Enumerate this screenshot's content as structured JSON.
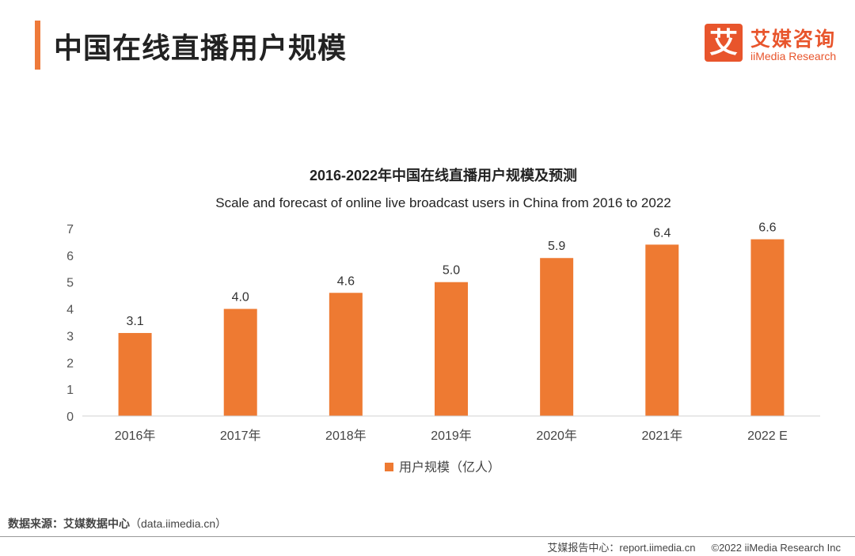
{
  "header": {
    "title": "中国在线直播用户规模"
  },
  "logo": {
    "mark": "艾",
    "name_cn": "艾媒咨询",
    "name_en": "iiMedia Research"
  },
  "chart_data": {
    "type": "bar",
    "title": "2016-2022年中国在线直播用户规模及预测",
    "subtitle": "Scale and forecast of online live broadcast users in China from 2016 to 2022",
    "categories": [
      "2016年",
      "2017年",
      "2018年",
      "2019年",
      "2020年",
      "2021年",
      "2022 E"
    ],
    "series": [
      {
        "name": "用户规模（亿人）",
        "values": [
          3.1,
          4.0,
          4.6,
          5.0,
          5.9,
          6.4,
          6.6
        ],
        "color": "#ee7a32"
      }
    ],
    "data_labels": [
      "3.1",
      "4.0",
      "4.6",
      "5.0",
      "5.9",
      "6.4",
      "6.6"
    ],
    "ylim": [
      0,
      7
    ],
    "yticks": [
      "0",
      "1",
      "2",
      "3",
      "4",
      "5",
      "6",
      "7"
    ],
    "xlabel": "",
    "ylabel": "",
    "grid": false,
    "legend_position": "bottom"
  },
  "footer": {
    "source": "数据来源：艾媒数据中心",
    "source_url": "（data.iimedia.cn）",
    "report": "艾媒报告中心：report.iimedia.cn",
    "copyright": "©2022  iiMedia Research  Inc"
  }
}
